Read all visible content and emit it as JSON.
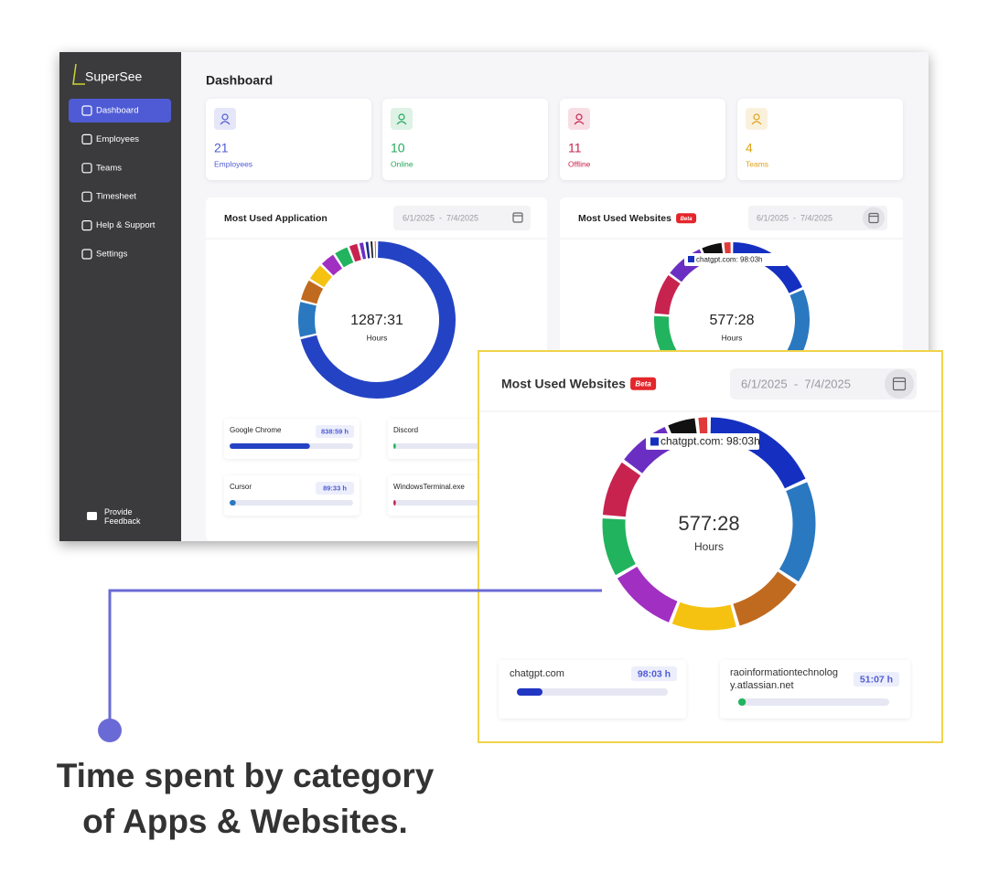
{
  "sidebar": {
    "brand": "SuperSee",
    "nav": [
      "Dashboard",
      "Employees",
      "Teams",
      "Timesheet",
      "Help & Support",
      "Settings"
    ],
    "active": 0,
    "feedback": "Provide Feedback"
  },
  "header": {
    "title": "Dashboard"
  },
  "stats": [
    {
      "value": 21,
      "label": "Employees",
      "color": "#4f5bd5"
    },
    {
      "value": 10,
      "label": "Online",
      "color": "#22a85a"
    },
    {
      "value": 11,
      "label": "Offline",
      "color": "#c8234f"
    },
    {
      "value": 4,
      "label": "Teams",
      "color": "#e0a21a"
    }
  ],
  "apps": {
    "title": "Most Used Application",
    "dates": "6/1/2025  -  7/4/2025",
    "total": "1287:31",
    "unit": "Hours",
    "segments": [
      {
        "value": 839,
        "color": "#2443c4"
      },
      {
        "value": 90,
        "color": "#2a78c0"
      },
      {
        "value": 55,
        "color": "#c06a1f"
      },
      {
        "value": 45,
        "color": "#f5c211"
      },
      {
        "value": 40,
        "color": "#a12fc2"
      },
      {
        "value": 38,
        "color": "#22b35e"
      },
      {
        "value": 25,
        "color": "#c8234f"
      },
      {
        "value": 15,
        "color": "#6a2fc2"
      },
      {
        "value": 12,
        "color": "#1b2a8a"
      },
      {
        "value": 10,
        "color": "#111111"
      },
      {
        "value": 8,
        "color": "#e03a3a"
      }
    ],
    "items": [
      {
        "name": "Google Chrome",
        "time": "838:59 h",
        "progress": 65,
        "color": "#2443c4"
      },
      {
        "name": "Discord",
        "progress": 2,
        "color": "#22b35e"
      },
      {
        "name": "Cursor",
        "time": "89:33 h",
        "progress": 5,
        "color": "#2a78c0"
      },
      {
        "name": "WindowsTerminal.exe",
        "progress": 2,
        "color": "#c8234f"
      }
    ]
  },
  "websites": {
    "title": "Most Used Websites",
    "badge": "Beta",
    "dates": "6/1/2025  -  7/4/2025",
    "total": "577:28",
    "unit": "Hours",
    "tooltip": "chatgpt.com: 98:03h",
    "segments": [
      {
        "value": 98,
        "color": "#1530c0"
      },
      {
        "value": 86,
        "color": "#2a78c0"
      },
      {
        "value": 60,
        "color": "#c06a1f"
      },
      {
        "value": 55,
        "color": "#f5c211"
      },
      {
        "value": 58,
        "color": "#a12fc2"
      },
      {
        "value": 50,
        "color": "#22b35e"
      },
      {
        "value": 48,
        "color": "#c8234f"
      },
      {
        "value": 45,
        "color": "#6a2fc2"
      },
      {
        "value": 25,
        "color": "#111111"
      },
      {
        "value": 10,
        "color": "#e03a3a"
      }
    ]
  },
  "zoom": {
    "title": "Most Used Websites",
    "badge": "Beta",
    "dates": "6/1/2025  -  7/4/2025",
    "total": "577:28",
    "unit": "Hours",
    "tooltip": "chatgpt.com: 98:03h",
    "items": [
      {
        "name": "chatgpt.com",
        "time": "98:03 h",
        "progress": 17,
        "color": "#2136c2"
      },
      {
        "name": "raoinformationtechnology.atlassian.net",
        "time": "51:07 h",
        "progress": 5,
        "color": "#22b35e"
      }
    ]
  },
  "caption": [
    "Time spent by category",
    "of Apps & Websites."
  ]
}
